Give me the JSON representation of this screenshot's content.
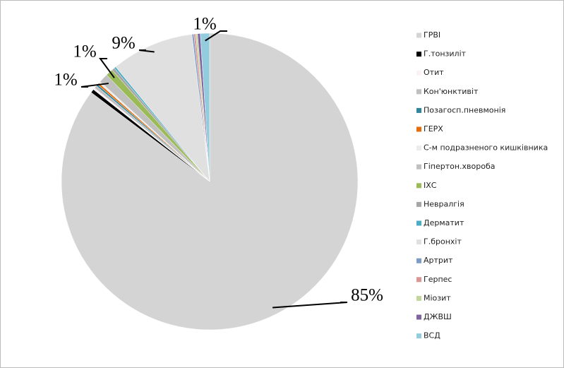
{
  "chart_data": {
    "type": "pie",
    "categories": [
      "ГРВІ",
      "Г.тонзиліт",
      "Отит",
      "Кон'юнктивіт",
      "Позагосп.пневмонія",
      "ГЕРХ",
      "С-м подразненого кишківника",
      "Гіпертон.хвороба",
      "ІХС",
      "Невралгія",
      "Дерматит",
      "Г.бронхіт",
      "Артрит",
      "Герпес",
      "Міозит",
      "ДЖВШ",
      "ВСД"
    ],
    "values": [
      85,
      0.4,
      0.2,
      0.3,
      0.2,
      0.2,
      0.2,
      1,
      0.8,
      0.3,
      0.2,
      9,
      0.2,
      0.2,
      0.2,
      0.3,
      1
    ],
    "value_labels": [
      "85%",
      null,
      null,
      null,
      null,
      null,
      null,
      "1%",
      "1%",
      null,
      null,
      "9%",
      null,
      null,
      null,
      null,
      "1%"
    ],
    "colors": [
      "#d4d4d4",
      "#000000",
      "#fdf2f2",
      "#bfbfbf",
      "#31859c",
      "#e46c0a",
      "#ececec",
      "#c0c0c0",
      "#9bbb59",
      "#a6a6a6",
      "#4bacc6",
      "#e0e0e0",
      "#7a9cc6",
      "#d99694",
      "#c3d69b",
      "#8064a2",
      "#93cddd"
    ]
  }
}
